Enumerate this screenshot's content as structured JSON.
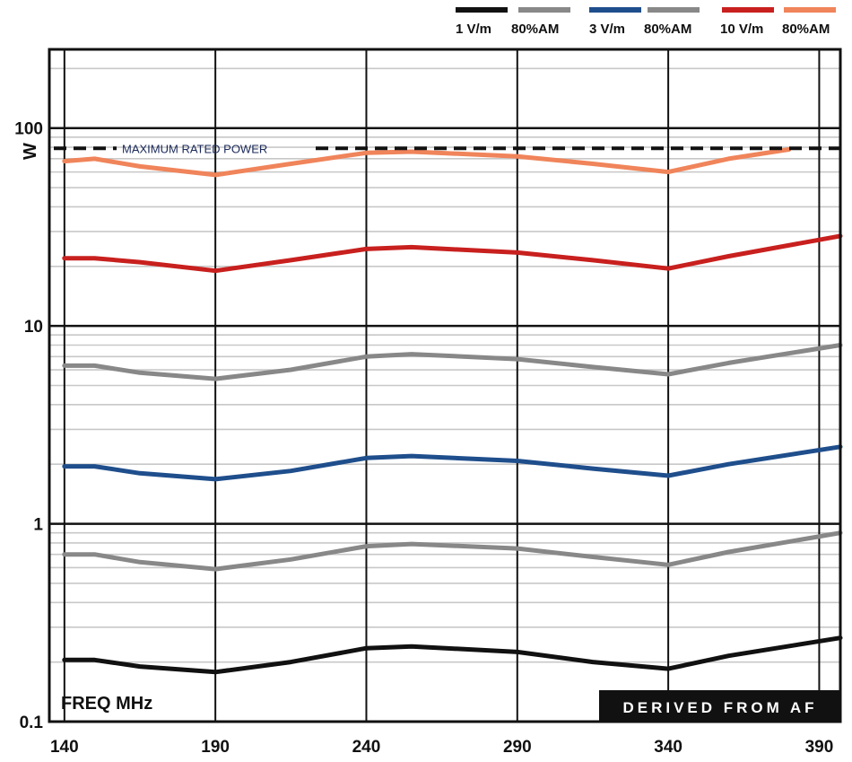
{
  "chart_data": {
    "type": "line",
    "x_scale": "linear",
    "y_scale": "log",
    "xlim": [
      135,
      397
    ],
    "ylim": [
      0.1,
      250
    ],
    "x_ticks": [
      140,
      190,
      240,
      290,
      340,
      390
    ],
    "x_tick_labels": [
      "140",
      "190",
      "240",
      "290",
      "340",
      "390"
    ],
    "y_ticks": [
      0.1,
      1,
      10,
      100
    ],
    "y_tick_labels": [
      "0.1",
      "1",
      "10",
      "100"
    ],
    "xlabel": "FREQ MHz",
    "ylabel": "W",
    "grid": true,
    "legend_position": "top-right",
    "legend_groups": [
      {
        "label": "1 V/m",
        "colors": [
          "#111111",
          "#888888"
        ]
      },
      {
        "label": "80%AM",
        "colors": [],
        "inline": true
      },
      {
        "label": "3 V/m",
        "colors": [
          "#1f4e8c",
          "#888888"
        ]
      },
      {
        "label": "80%AM",
        "colors": [],
        "inline": true
      },
      {
        "label": "10 V/m",
        "colors": [
          "#c8201e",
          "#f0845a"
        ]
      },
      {
        "label": "80%AM",
        "colors": [],
        "inline": true
      }
    ],
    "legend": {
      "entries": [
        {
          "text": "1 V/m",
          "color": "#111111"
        },
        {
          "text": "80%AM",
          "color": "#888888"
        },
        {
          "text": "3 V/m",
          "color": "#1f4e8c"
        },
        {
          "text": "80%AM",
          "color": "#888888"
        },
        {
          "text": "10 V/m",
          "color": "#c8201e"
        },
        {
          "text": "80%AM",
          "color": "#f0845a"
        }
      ]
    },
    "reference_line": {
      "label": "MAXIMUM RATED POWER",
      "value": 79,
      "color": "#111111",
      "style": "dashed"
    },
    "badge": "DERIVED FROM AF",
    "series": [
      {
        "color": "#f0845a",
        "x": [
          140,
          150,
          165,
          190,
          215,
          240,
          255,
          290,
          315,
          340,
          360,
          380
        ],
        "y": [
          68,
          70,
          64,
          58,
          66,
          75,
          76,
          72,
          66,
          60,
          70,
          78
        ]
      },
      {
        "color": "#c8201e",
        "x": [
          140,
          150,
          165,
          190,
          215,
          240,
          255,
          290,
          315,
          340,
          360,
          397
        ],
        "y": [
          22,
          22,
          21,
          19,
          21.5,
          24.5,
          25,
          23.5,
          21.5,
          19.5,
          22.5,
          28.5
        ]
      },
      {
        "color": "#888888",
        "x": [
          140,
          150,
          165,
          190,
          215,
          240,
          255,
          290,
          315,
          340,
          360,
          397
        ],
        "y": [
          6.3,
          6.3,
          5.8,
          5.4,
          6.0,
          7.0,
          7.2,
          6.8,
          6.2,
          5.7,
          6.5,
          8.0
        ]
      },
      {
        "color": "#1f4e8c",
        "x": [
          140,
          150,
          165,
          190,
          215,
          240,
          255,
          290,
          315,
          340,
          360,
          397
        ],
        "y": [
          1.95,
          1.95,
          1.8,
          1.68,
          1.85,
          2.15,
          2.2,
          2.08,
          1.9,
          1.75,
          2.0,
          2.45
        ]
      },
      {
        "color": "#888888",
        "x": [
          140,
          150,
          165,
          190,
          215,
          240,
          255,
          290,
          315,
          340,
          360,
          397
        ],
        "y": [
          0.7,
          0.7,
          0.64,
          0.59,
          0.66,
          0.77,
          0.79,
          0.75,
          0.68,
          0.62,
          0.72,
          0.9
        ]
      },
      {
        "color": "#111111",
        "x": [
          140,
          150,
          165,
          190,
          215,
          240,
          255,
          290,
          315,
          340,
          360,
          397
        ],
        "y": [
          0.205,
          0.205,
          0.19,
          0.178,
          0.2,
          0.235,
          0.24,
          0.225,
          0.2,
          0.185,
          0.215,
          0.265
        ]
      }
    ]
  }
}
